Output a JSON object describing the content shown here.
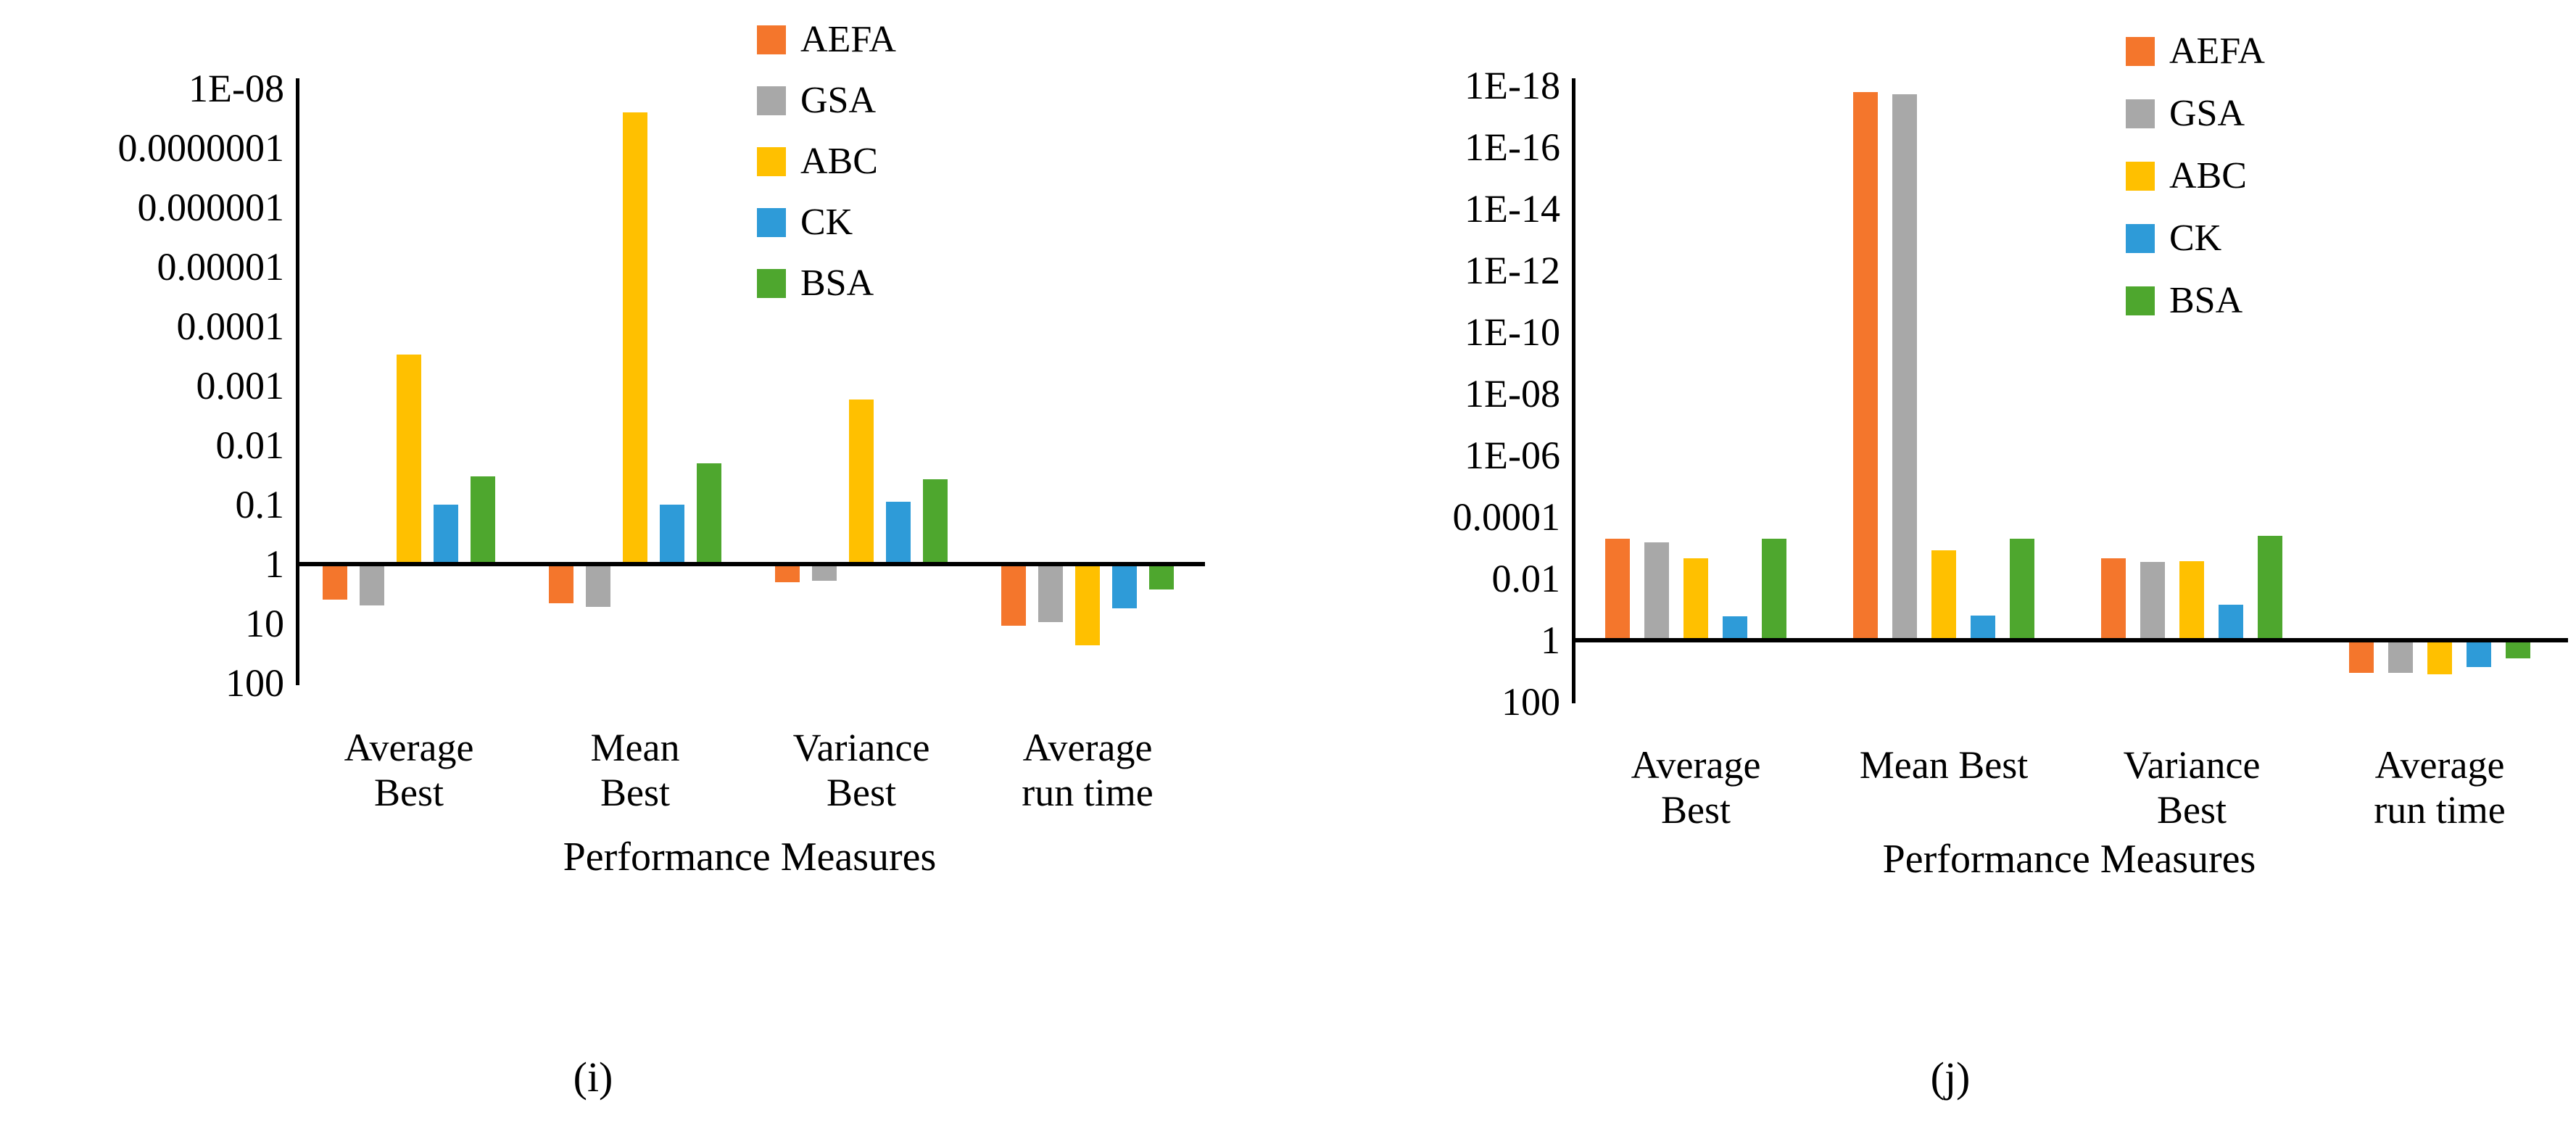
{
  "chart_data": [
    {
      "id": "i",
      "type": "bar",
      "caption": "(i)",
      "xlabel": "Performance Measures",
      "y_scale": "log10-inverted",
      "y_ticks": [
        "1E-08",
        "0.0000001",
        "0.000001",
        "0.00001",
        "0.0001",
        "0.001",
        "0.01",
        "0.1",
        "1",
        "10",
        "100"
      ],
      "baseline_value": 1,
      "legend_position": "top-right",
      "categories": [
        "Average Best",
        "Mean Best",
        "Variance Best",
        "Average run time"
      ],
      "category_lines": [
        [
          "Average",
          "Best"
        ],
        [
          "Mean",
          "Best"
        ],
        [
          "Variance",
          "Best"
        ],
        [
          "Average",
          "run time"
        ]
      ],
      "series": [
        {
          "name": "AEFA",
          "color": "#F4762C",
          "values": [
            4,
            4.5,
            2,
            11
          ]
        },
        {
          "name": "GSA",
          "color": "#A8A8A8",
          "values": [
            5,
            5.2,
            1.9,
            9.5
          ]
        },
        {
          "name": "ABC",
          "color": "#FFC000",
          "values": [
            0.0003,
            2.5e-08,
            0.0017,
            23
          ]
        },
        {
          "name": "CK",
          "color": "#2E9BD8",
          "values": [
            0.1,
            0.1,
            0.09,
            5.5
          ]
        },
        {
          "name": "BSA",
          "color": "#4EA72E",
          "values": [
            0.033,
            0.02,
            0.037,
            2.7
          ]
        }
      ]
    },
    {
      "id": "j",
      "type": "bar",
      "caption": "(j)",
      "xlabel": "Performance Measures",
      "y_scale": "log10-inverted",
      "y_ticks": [
        "1E-18",
        "1E-16",
        "1E-14",
        "1E-12",
        "1E-10",
        "1E-08",
        "1E-06",
        "0.0001",
        "0.01",
        "1",
        "100"
      ],
      "baseline_value": 1,
      "legend_position": "top-right",
      "categories": [
        "Average Best",
        "Mean Best",
        "Variance Best",
        "Average run time"
      ],
      "category_lines": [
        [
          "Average",
          "Best"
        ],
        [
          "Mean Best"
        ],
        [
          "Variance",
          "Best"
        ],
        [
          "Average",
          "run time"
        ]
      ],
      "series": [
        {
          "name": "AEFA",
          "color": "#F4762C",
          "values": [
            0.0005,
            1.6e-18,
            0.0022,
            11.5
          ]
        },
        {
          "name": "GSA",
          "color": "#A8A8A8",
          "values": [
            0.00065,
            1.9e-18,
            0.0029,
            11.5
          ]
        },
        {
          "name": "ABC",
          "color": "#FFC000",
          "values": [
            0.0022,
            0.0012,
            0.0027,
            13
          ]
        },
        {
          "name": "CK",
          "color": "#2E9BD8",
          "values": [
            0.17,
            0.16,
            0.07,
            7.5
          ]
        },
        {
          "name": "BSA",
          "color": "#4EA72E",
          "values": [
            0.0005,
            0.00052,
            0.0004,
            3.9
          ]
        }
      ]
    }
  ]
}
